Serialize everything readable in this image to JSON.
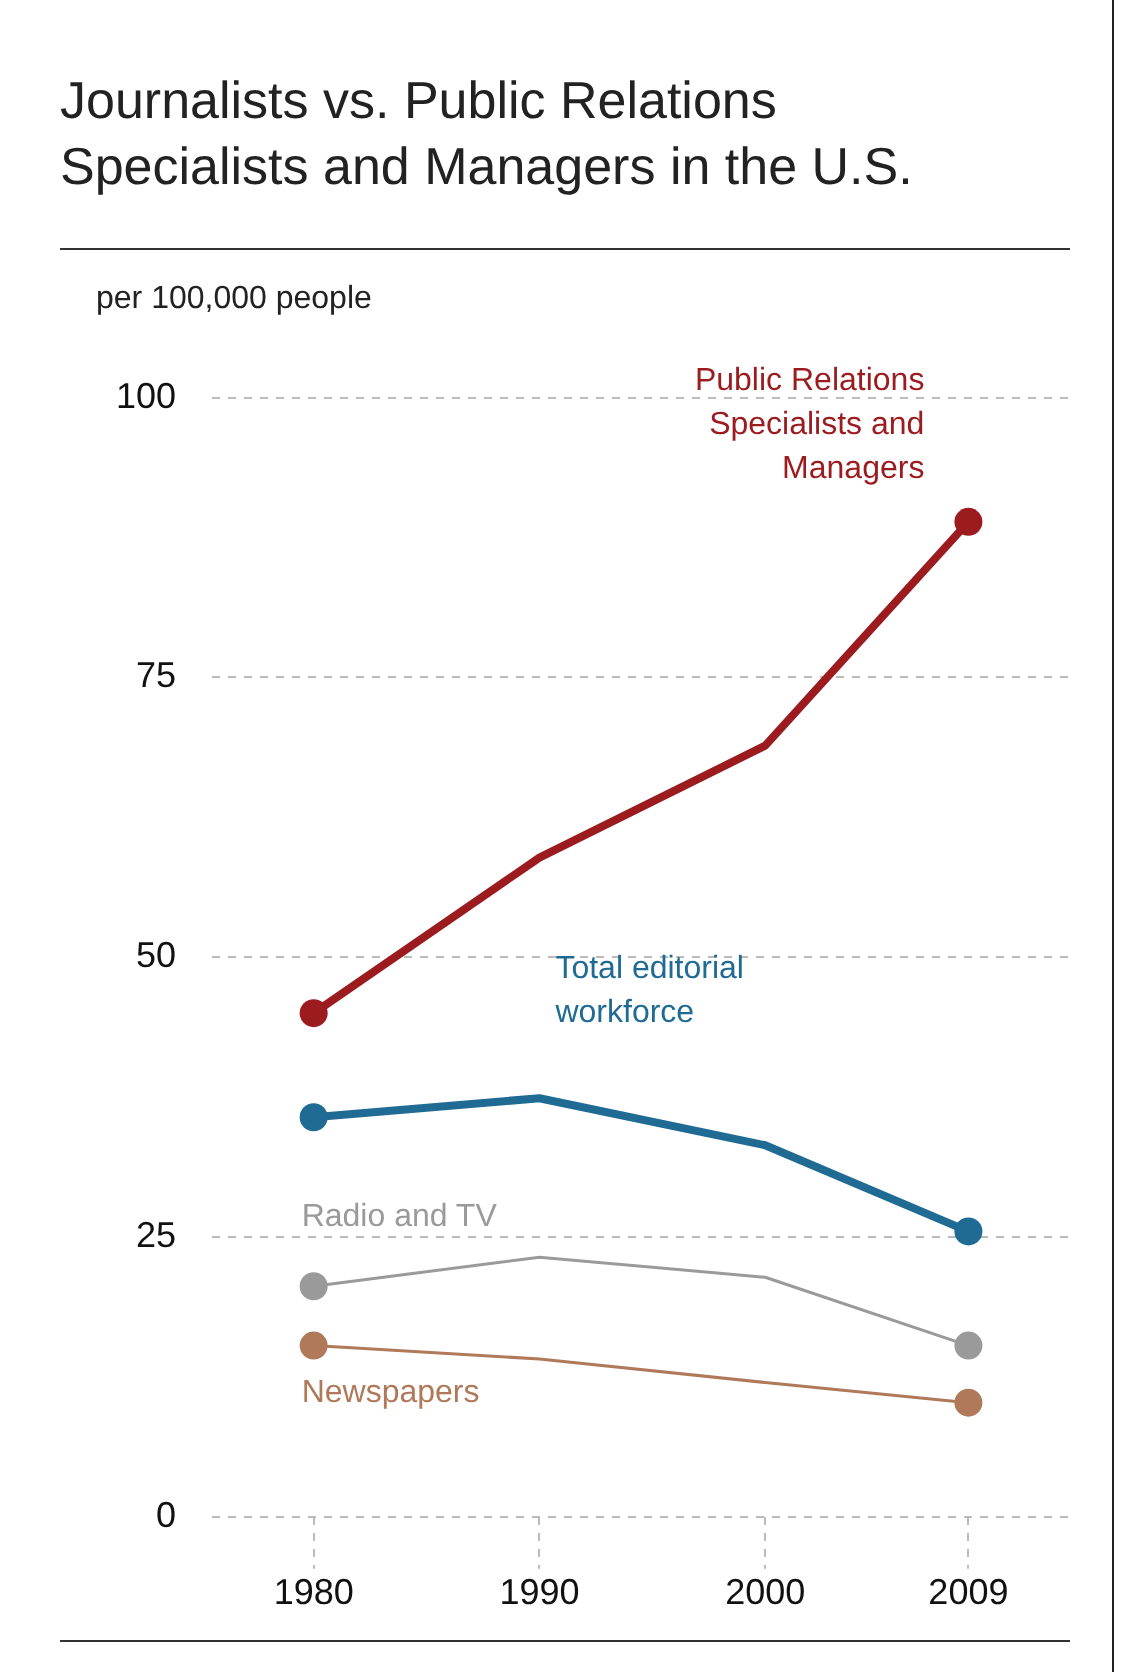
{
  "chart_data": {
    "type": "line",
    "title": "Journalists vs. Public Relations Specialists and Managers in the U.S.",
    "ylabel": "per 100,000 people",
    "x": [
      1980,
      1990,
      2000,
      2009
    ],
    "xlim": [
      1975.5,
      2013.5
    ],
    "xticks": [
      1980,
      1990,
      2000,
      2009
    ],
    "ylim": [
      0,
      100
    ],
    "yticks": [
      0,
      25,
      50,
      75,
      100
    ],
    "grid": "y",
    "legend": false,
    "marker": "circle",
    "line_style": "solid",
    "series": [
      {
        "name": "Public Relations Specialists and Managers",
        "color": "#9b1b1e",
        "values": [
          45.0,
          58.9,
          68.9,
          88.9
        ]
      },
      {
        "name": "Total editorial workforce",
        "color": "#1f6b94",
        "values": [
          35.7,
          37.4,
          33.2,
          25.5
        ]
      },
      {
        "name": "Radio and TV",
        "color": "#9a9a9a",
        "values": [
          20.6,
          23.2,
          21.4,
          15.3
        ]
      },
      {
        "name": "Newspapers",
        "color": "#b07a5a",
        "values": [
          15.3,
          14.1,
          12.0,
          10.2
        ]
      }
    ]
  }
}
